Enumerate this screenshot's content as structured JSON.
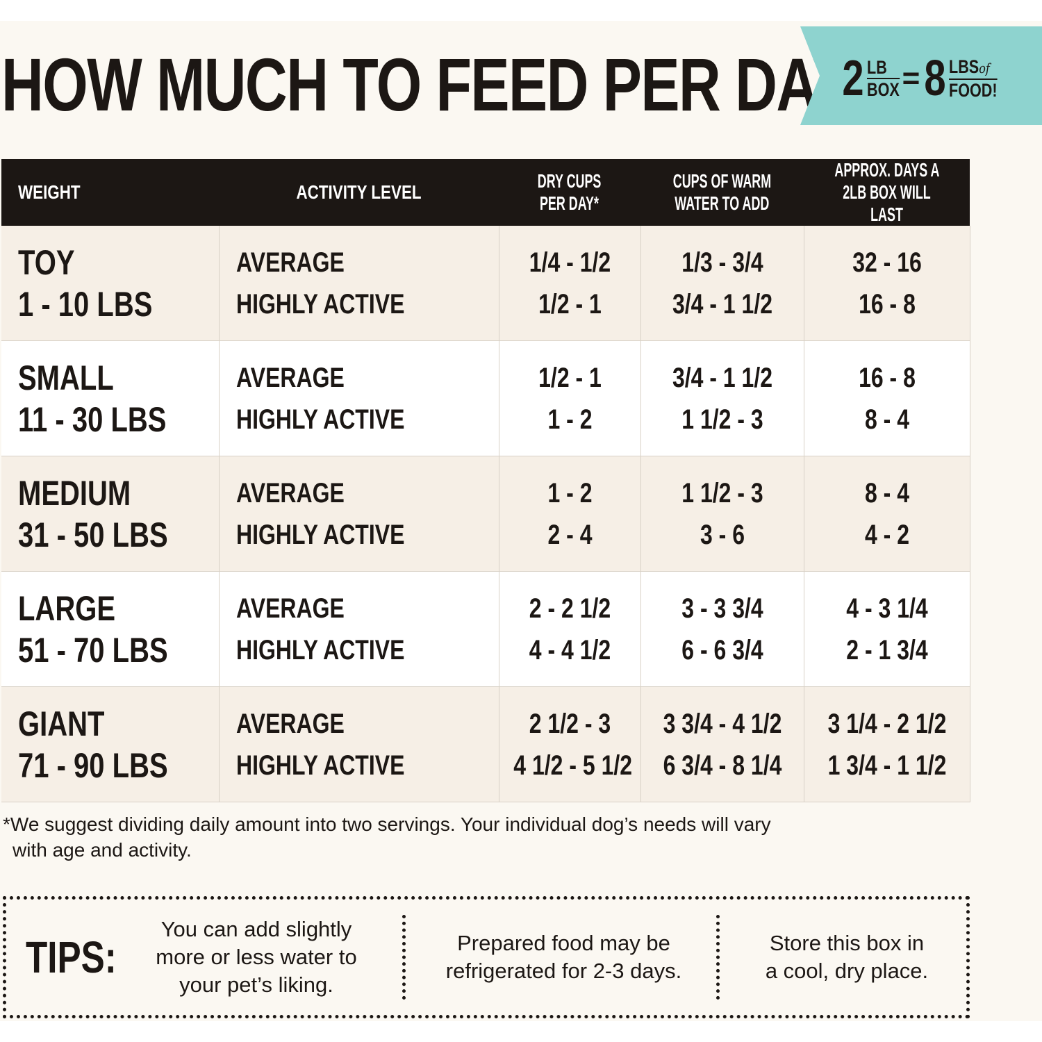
{
  "title": "HOW MUCH TO FEED PER DAY",
  "badge": {
    "box_weight": "2",
    "box_unit_top": "LB",
    "box_unit_bottom": "BOX",
    "equals": "=",
    "food_weight": "8",
    "food_unit_top": "LBS",
    "food_of": "of",
    "food_unit_bottom": "FOOD!"
  },
  "table": {
    "headers": {
      "weight": "WEIGHT",
      "activity": "ACTIVITY LEVEL",
      "dry_cups_1": "DRY CUPS",
      "dry_cups_2": "PER DAY*",
      "water_1": "CUPS OF WARM",
      "water_2": "WATER TO ADD",
      "days_1": "APPROX. DAYS A",
      "days_2": "2LB BOX WILL LAST"
    },
    "rows": [
      {
        "size": "TOY",
        "range": "1 - 10 LBS",
        "act1": "AVERAGE",
        "act2": "HIGHLY ACTIVE",
        "dry1": "1/4 - 1/2",
        "dry2": "1/2 - 1",
        "water1": "1/3 - 3/4",
        "water2": "3/4 - 1 1/2",
        "days1": "32 - 16",
        "days2": "16 - 8"
      },
      {
        "size": "SMALL",
        "range": "11 - 30 LBS",
        "act1": "AVERAGE",
        "act2": "HIGHLY ACTIVE",
        "dry1": "1/2 - 1",
        "dry2": "1 - 2",
        "water1": "3/4 - 1 1/2",
        "water2": "1 1/2 - 3",
        "days1": "16 - 8",
        "days2": "8 - 4"
      },
      {
        "size": "MEDIUM",
        "range": "31 - 50 LBS",
        "act1": "AVERAGE",
        "act2": "HIGHLY ACTIVE",
        "dry1": "1 - 2",
        "dry2": "2 - 4",
        "water1": "1 1/2 - 3",
        "water2": "3 - 6",
        "days1": "8 - 4",
        "days2": "4 - 2"
      },
      {
        "size": "LARGE",
        "range": "51 - 70 LBS",
        "act1": "AVERAGE",
        "act2": "HIGHLY ACTIVE",
        "dry1": "2 - 2 1/2",
        "dry2": "4 - 4 1/2",
        "water1": "3 - 3 3/4",
        "water2": "6 - 6 3/4",
        "days1": "4 - 3 1/4",
        "days2": "2 - 1 3/4"
      },
      {
        "size": "GIANT",
        "range": "71 - 90 LBS",
        "act1": "AVERAGE",
        "act2": "HIGHLY ACTIVE",
        "dry1": "2 1/2 - 3",
        "dry2": "4 1/2 - 5 1/2",
        "water1": "3 3/4 - 4 1/2",
        "water2": "6 3/4 - 8 1/4",
        "days1": "3 1/4 - 2 1/2",
        "days2": "1 3/4 - 1 1/2"
      }
    ]
  },
  "footnote": {
    "line1": "*We suggest dividing daily amount into two servings. Your individual dog’s needs will vary",
    "line2": "with age and activity."
  },
  "tips": {
    "label": "TIPS:",
    "items": [
      {
        "line1": "You can add slightly",
        "line2": "more or less water to",
        "line3": "your pet’s liking."
      },
      {
        "line1": "Prepared food may be",
        "line2": "refrigerated for 2-3 days."
      },
      {
        "line1": "Store this box in",
        "line2": "a cool, dry place."
      }
    ]
  },
  "colors": {
    "header_bg": "#1c1714",
    "ribbon": "#8ed3cf",
    "shaded_row": "#f6efe6",
    "page_bg": "#fbf8f2"
  }
}
